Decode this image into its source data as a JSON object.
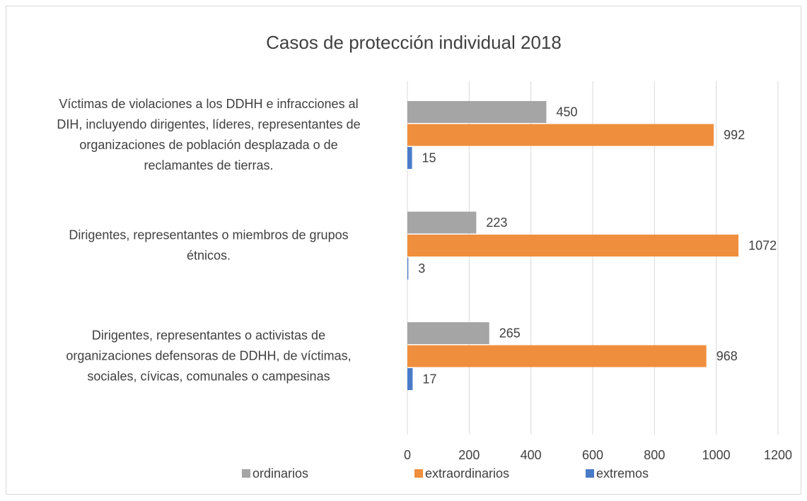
{
  "chart_data": {
    "type": "hbar",
    "title": "Casos de protección individual 2018",
    "categories": [
      [
        "Víctimas de violaciones a los DDHH e infracciones al",
        "DIH, incluyendo dirigentes, líderes, representantes de",
        "organizaciones de población desplazada o de",
        "reclamantes de tierras."
      ],
      [
        "Dirigentes, representantes o miembros de grupos",
        "étnicos."
      ],
      [
        "Dirigentes, representantes o activistas de",
        "organizaciones defensoras de DDHH, de víctimas,",
        "sociales, cívicas, comunales o campesinas"
      ]
    ],
    "series": [
      {
        "name": "ordinarios",
        "color": "#a5a5a5",
        "values": [
          450,
          223,
          265
        ]
      },
      {
        "name": "extraordinarios",
        "color": "#ef8f3d",
        "values": [
          992,
          1072,
          968
        ]
      },
      {
        "name": "extremos",
        "color": "#4a7bc8",
        "values": [
          15,
          3,
          17
        ]
      }
    ],
    "xlim": [
      0,
      1200
    ],
    "xticks": [
      0,
      200,
      400,
      600,
      800,
      1000,
      1200
    ],
    "grid": true,
    "legend": "bottom"
  }
}
